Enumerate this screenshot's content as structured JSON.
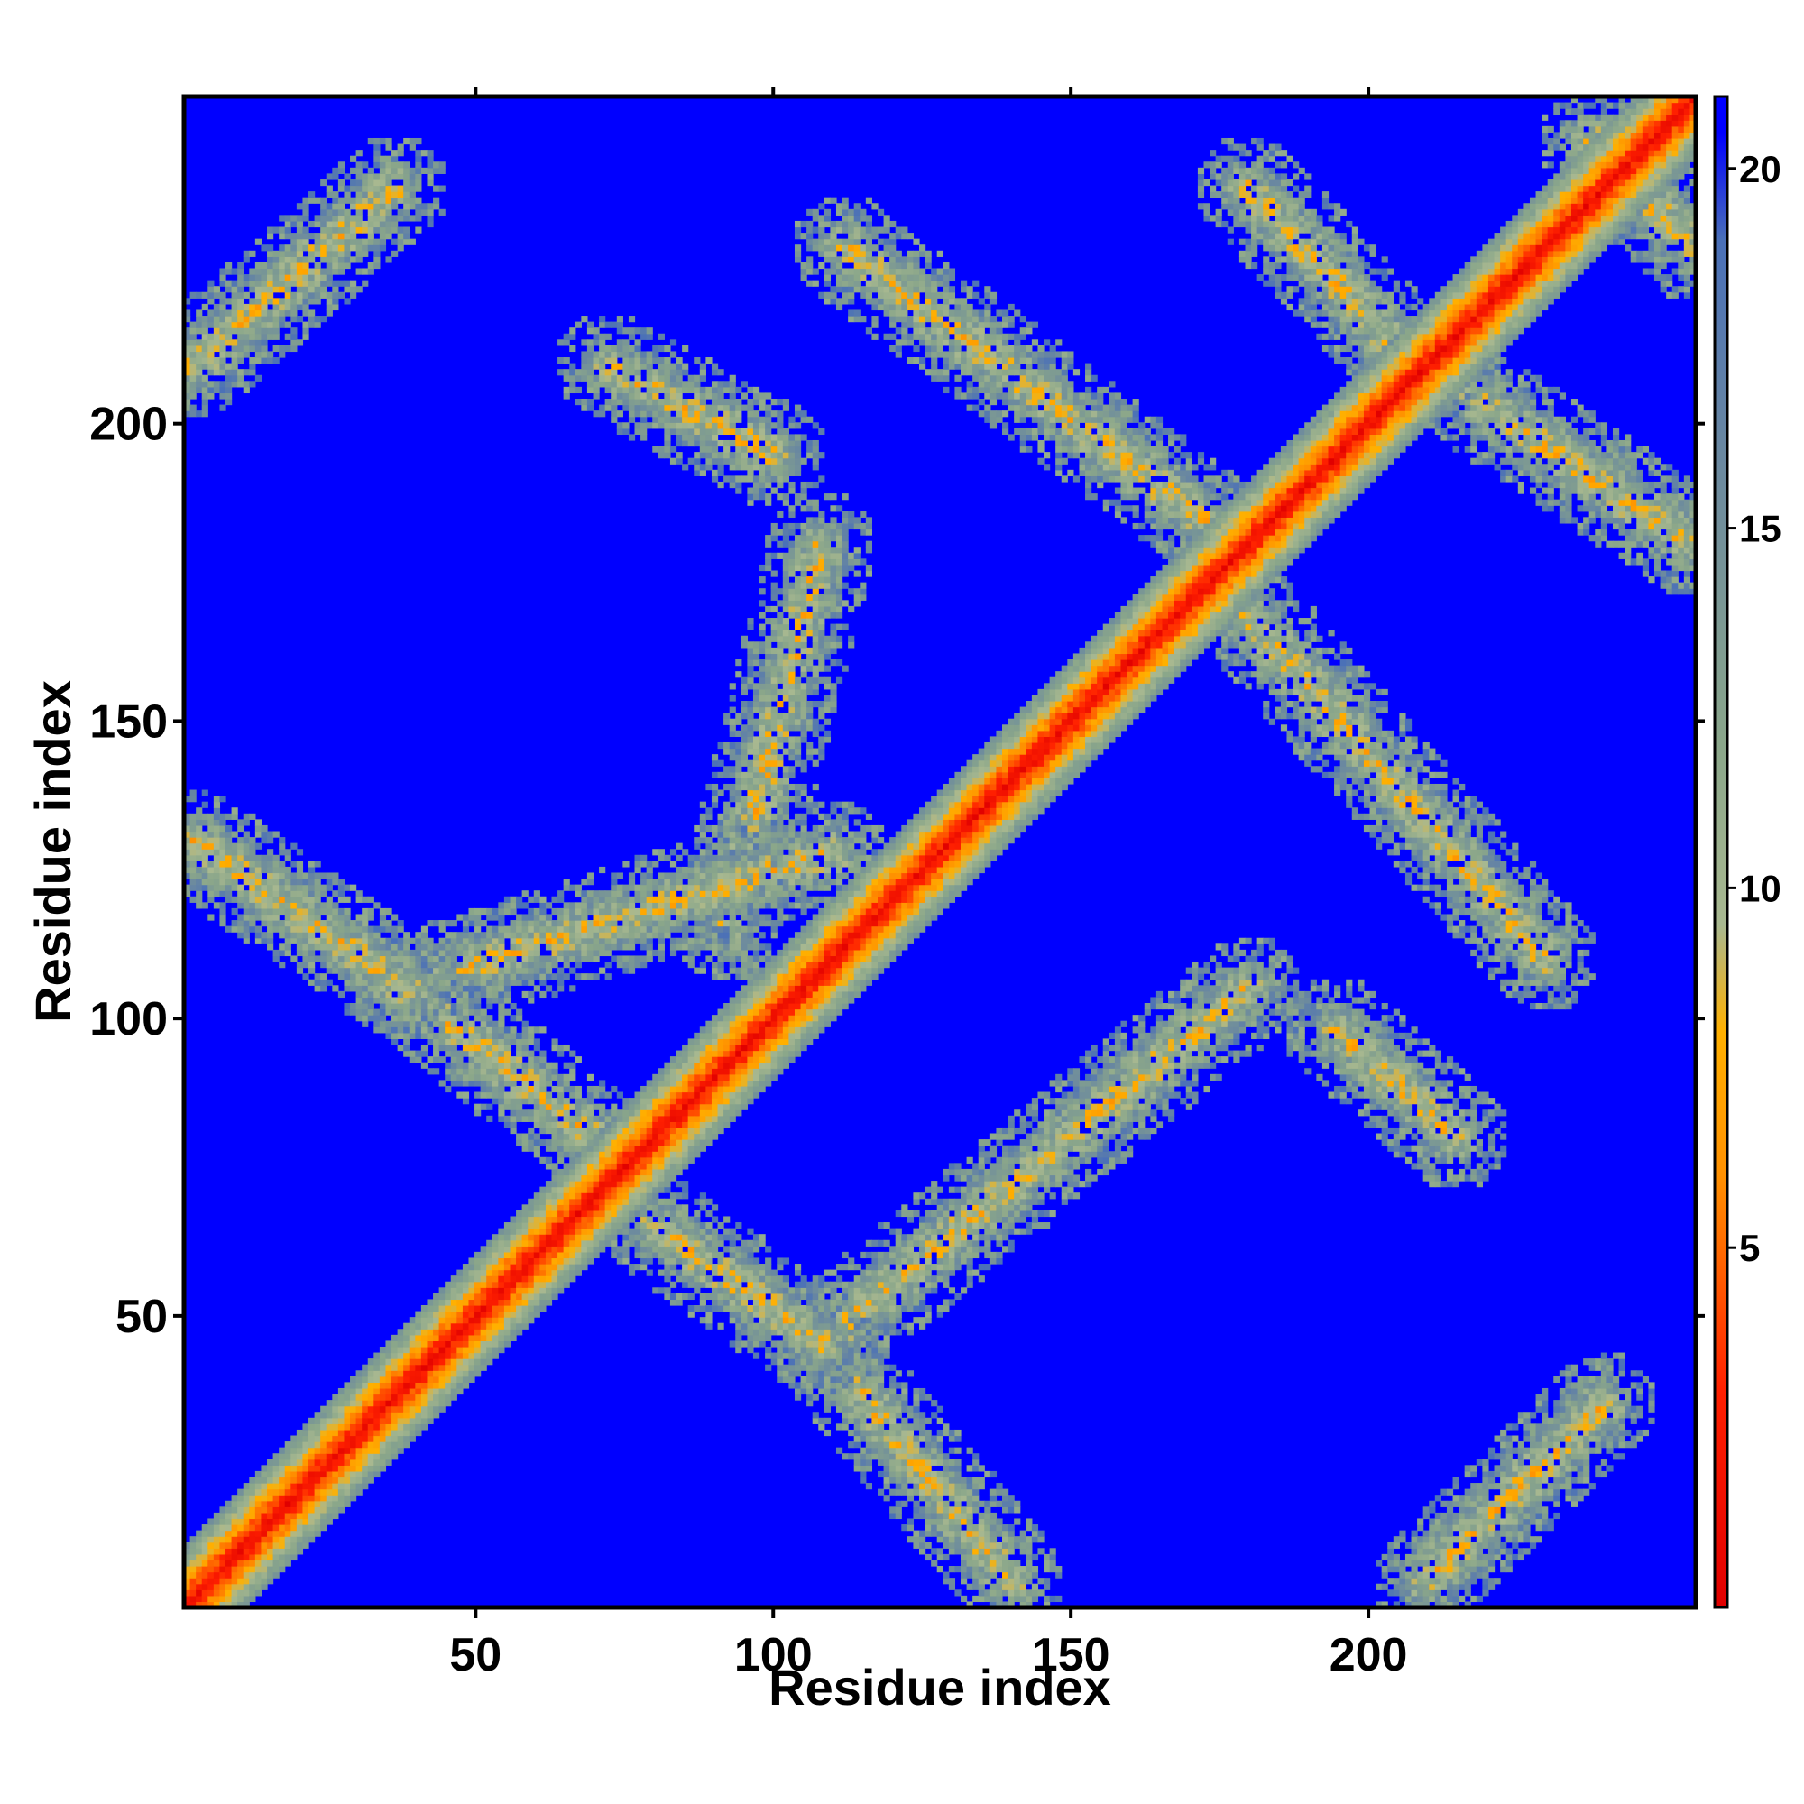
{
  "chart_data": {
    "type": "heatmap",
    "title": "",
    "xlabel": "Residue index",
    "ylabel": "Residue index",
    "xlim": [
      1,
      255
    ],
    "ylim": [
      1,
      255
    ],
    "x_ticks": [
      50,
      100,
      150,
      200
    ],
    "y_ticks": [
      50,
      100,
      150,
      200
    ],
    "colorbar": {
      "range": [
        0,
        21
      ],
      "ticks": [
        5,
        10,
        15,
        20
      ],
      "stops": [
        {
          "value": 0,
          "color": "#e00000"
        },
        {
          "value": 3,
          "color": "#ff2000"
        },
        {
          "value": 6,
          "color": "#ff9000"
        },
        {
          "value": 8,
          "color": "#ffb000"
        },
        {
          "value": 9.5,
          "color": "#a8b890"
        },
        {
          "value": 12,
          "color": "#8aa68a"
        },
        {
          "value": 16,
          "color": "#6a88a0"
        },
        {
          "value": 19,
          "color": "#4a70b8"
        },
        {
          "value": 20.5,
          "color": "#0000ff"
        }
      ]
    },
    "background_color": "#0000ff",
    "diagonal_band": {
      "center": 0,
      "core_color": "#ee1010"
    },
    "contact_bands": [
      {
        "x": [
          2,
          36
        ],
        "y": [
          210,
          240
        ]
      },
      {
        "x": [
          2,
          38
        ],
        "y": [
          130,
          105
        ]
      },
      {
        "x": [
          38,
          72
        ],
        "y": [
          105,
          78
        ]
      },
      {
        "x": [
          46,
          110
        ],
        "y": [
          108,
          128
        ]
      },
      {
        "x": [
          80,
          108
        ],
        "y": [
          65,
          45
        ]
      },
      {
        "x": [
          108,
          180
        ],
        "y": [
          45,
          105
        ]
      },
      {
        "x": [
          108,
          140
        ],
        "y": [
          45,
          5
        ]
      },
      {
        "x": [
          92,
          108
        ],
        "y": [
          115,
          180
        ]
      },
      {
        "x": [
          72,
          100
        ],
        "y": [
          210,
          195
        ]
      },
      {
        "x": [
          112,
          178
        ],
        "y": [
          230,
          180
        ]
      },
      {
        "x": [
          180,
          230
        ],
        "y": [
          168,
          110
        ]
      },
      {
        "x": [
          180,
          210
        ],
        "y": [
          240,
          208
        ]
      },
      {
        "x": [
          210,
          255
        ],
        "y": [
          210,
          180
        ]
      },
      {
        "x": [
          238,
          255
        ],
        "y": [
          248,
          230
        ]
      },
      {
        "x": [
          210,
          240
        ],
        "y": [
          5,
          35
        ]
      },
      {
        "x": [
          195,
          215
        ],
        "y": [
          98,
          80
        ]
      }
    ]
  }
}
